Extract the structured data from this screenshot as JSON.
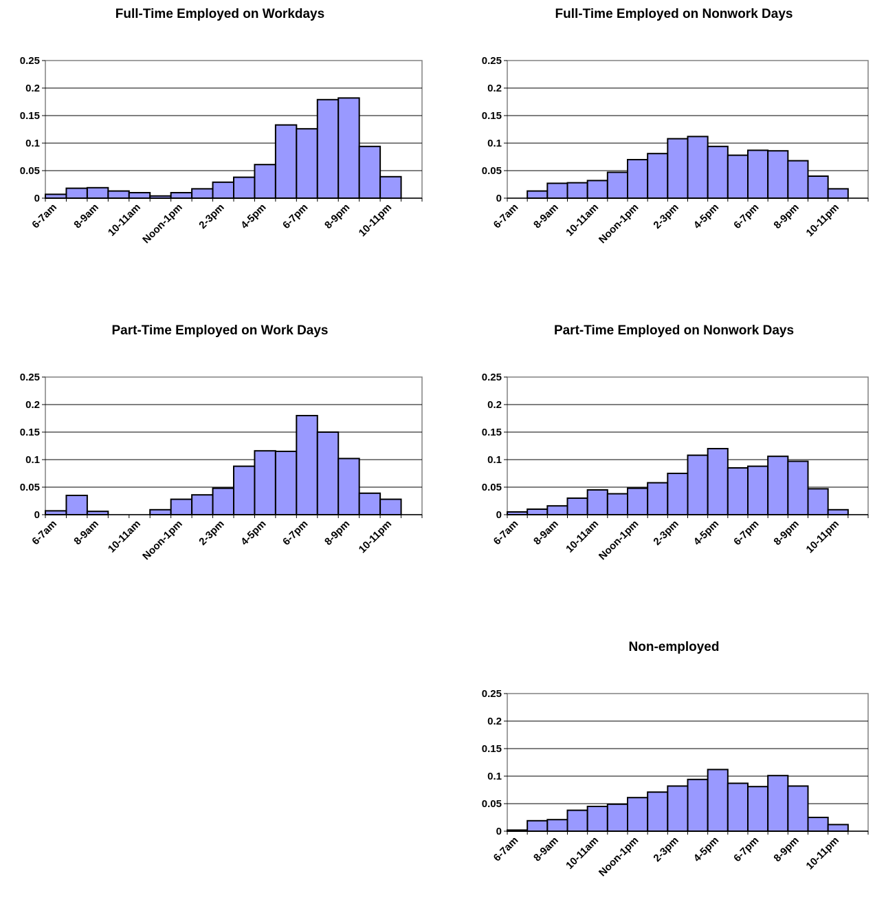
{
  "colors": {
    "bar_fill": "#9999ff",
    "bar_stroke": "#000000",
    "grid": "#000000",
    "plot_border": "#808080"
  },
  "chart_data": [
    {
      "type": "bar",
      "title": "Full-Time Employed on Workdays",
      "categories": [
        "6-7am",
        "7-8am",
        "8-9am",
        "9-10am",
        "10-11am",
        "11am-Noon",
        "Noon-1pm",
        "1-2pm",
        "2-3pm",
        "3-4pm",
        "4-5pm",
        "5-6pm",
        "6-7pm",
        "7-8pm",
        "8-9pm",
        "9-10pm",
        "10-11pm",
        "11pm-Midnight"
      ],
      "values": [
        0.007,
        0.018,
        0.019,
        0.013,
        0.01,
        0.004,
        0.01,
        0.017,
        0.029,
        0.038,
        0.061,
        0.133,
        0.126,
        0.179,
        0.182,
        0.094,
        0.039,
        0.0
      ],
      "y_ticks": [
        "0",
        "0.05",
        "0.1",
        "0.15",
        "0.2",
        "0.25"
      ],
      "x_tick_labels": [
        "6-7am",
        "8-9am",
        "10-11am",
        "Noon-1pm",
        "2-3pm",
        "4-5pm",
        "6-7pm",
        "8-9pm",
        "10-11pm"
      ],
      "ylim": [
        0,
        0.25
      ],
      "grid": true
    },
    {
      "type": "bar",
      "title": "Full-Time Employed on Nonwork Days",
      "categories": [
        "6-7am",
        "7-8am",
        "8-9am",
        "9-10am",
        "10-11am",
        "11am-Noon",
        "Noon-1pm",
        "1-2pm",
        "2-3pm",
        "3-4pm",
        "4-5pm",
        "5-6pm",
        "6-7pm",
        "7-8pm",
        "8-9pm",
        "9-10pm",
        "10-11pm",
        "11pm-Midnight"
      ],
      "values": [
        0.0,
        0.013,
        0.027,
        0.028,
        0.032,
        0.047,
        0.07,
        0.081,
        0.108,
        0.112,
        0.094,
        0.078,
        0.087,
        0.086,
        0.068,
        0.04,
        0.017,
        0.0
      ],
      "y_ticks": [
        "0",
        "0.05",
        "0.1",
        "0.15",
        "0.2",
        "0.25"
      ],
      "x_tick_labels": [
        "6-7am",
        "8-9am",
        "10-11am",
        "Noon-1pm",
        "2-3pm",
        "4-5pm",
        "6-7pm",
        "8-9pm",
        "10-11pm"
      ],
      "ylim": [
        0,
        0.25
      ],
      "grid": true
    },
    {
      "type": "bar",
      "title": "Part-Time Employed on Work Days",
      "categories": [
        "6-7am",
        "7-8am",
        "8-9am",
        "9-10am",
        "10-11am",
        "11am-Noon",
        "Noon-1pm",
        "1-2pm",
        "2-3pm",
        "3-4pm",
        "4-5pm",
        "5-6pm",
        "6-7pm",
        "7-8pm",
        "8-9pm",
        "9-10pm",
        "10-11pm",
        "11pm-Midnight"
      ],
      "values": [
        0.007,
        0.035,
        0.006,
        0.0,
        0.0,
        0.009,
        0.028,
        0.036,
        0.048,
        0.088,
        0.116,
        0.115,
        0.18,
        0.15,
        0.102,
        0.039,
        0.028,
        0.0
      ],
      "y_ticks": [
        "0",
        "0.05",
        "0.1",
        "0.15",
        "0.2",
        "0.25"
      ],
      "x_tick_labels": [
        "6-7am",
        "8-9am",
        "10-11am",
        "Noon-1pm",
        "2-3pm",
        "4-5pm",
        "6-7pm",
        "8-9pm",
        "10-11pm"
      ],
      "ylim": [
        0,
        0.25
      ],
      "grid": true
    },
    {
      "type": "bar",
      "title": "Part-Time Employed on Nonwork Days",
      "categories": [
        "6-7am",
        "7-8am",
        "8-9am",
        "9-10am",
        "10-11am",
        "11am-Noon",
        "Noon-1pm",
        "1-2pm",
        "2-3pm",
        "3-4pm",
        "4-5pm",
        "5-6pm",
        "6-7pm",
        "7-8pm",
        "8-9pm",
        "9-10pm",
        "10-11pm",
        "11pm-Midnight"
      ],
      "values": [
        0.005,
        0.01,
        0.016,
        0.03,
        0.045,
        0.038,
        0.048,
        0.058,
        0.075,
        0.108,
        0.12,
        0.085,
        0.088,
        0.106,
        0.097,
        0.047,
        0.009,
        0.0
      ],
      "y_ticks": [
        "0",
        "0.05",
        "0.1",
        "0.15",
        "0.2",
        "0.25"
      ],
      "x_tick_labels": [
        "6-7am",
        "8-9am",
        "10-11am",
        "Noon-1pm",
        "2-3pm",
        "4-5pm",
        "6-7pm",
        "8-9pm",
        "10-11pm"
      ],
      "ylim": [
        0,
        0.25
      ],
      "grid": true
    },
    {
      "type": "bar",
      "title": "Non-employed",
      "categories": [
        "6-7am",
        "7-8am",
        "8-9am",
        "9-10am",
        "10-11am",
        "11am-Noon",
        "Noon-1pm",
        "1-2pm",
        "2-3pm",
        "3-4pm",
        "4-5pm",
        "5-6pm",
        "6-7pm",
        "7-8pm",
        "8-9pm",
        "9-10pm",
        "10-11pm",
        "11pm-Midnight"
      ],
      "values": [
        0.002,
        0.019,
        0.021,
        0.038,
        0.045,
        0.049,
        0.061,
        0.071,
        0.082,
        0.094,
        0.112,
        0.087,
        0.081,
        0.101,
        0.082,
        0.025,
        0.012,
        0.0
      ],
      "y_ticks": [
        "0",
        "0.05",
        "0.1",
        "0.15",
        "0.2",
        "0.25"
      ],
      "x_tick_labels": [
        "6-7am",
        "8-9am",
        "10-11am",
        "Noon-1pm",
        "2-3pm",
        "4-5pm",
        "6-7pm",
        "8-9pm",
        "10-11pm"
      ],
      "ylim": [
        0,
        0.25
      ],
      "grid": true
    }
  ]
}
